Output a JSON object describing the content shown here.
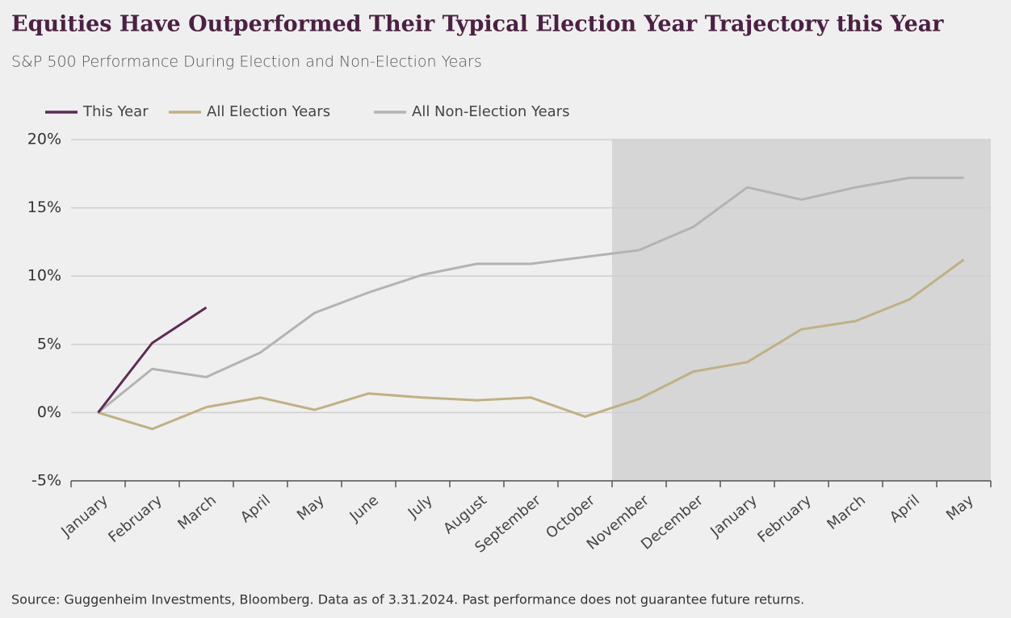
{
  "chart_data": {
    "type": "line",
    "title": "Equities Have Outperformed Their Typical Election Year Trajectory this Year",
    "subtitle": "S&P 500 Performance During Election and Non-Election Years",
    "source": "Source: Guggenheim Investments, Bloomberg. Data as of 3.31.2024. Past performance does not guarantee future returns.",
    "categories": [
      "January",
      "February",
      "March",
      "April",
      "May",
      "June",
      "July",
      "August",
      "September",
      "October",
      "November",
      "December",
      "January",
      "February",
      "March",
      "April",
      "May"
    ],
    "series": [
      {
        "name": "This Year",
        "color": "#5b2c56",
        "values": [
          0,
          5.1,
          7.7,
          null,
          null,
          null,
          null,
          null,
          null,
          null,
          null,
          null,
          null,
          null,
          null,
          null,
          null
        ]
      },
      {
        "name": "All Election Years",
        "color": "#bfb185",
        "values": [
          0,
          -1.2,
          0.4,
          1.1,
          0.2,
          1.4,
          1.1,
          0.9,
          1.1,
          -0.3,
          1.0,
          3.0,
          3.7,
          6.1,
          6.7,
          8.3,
          11.2
        ]
      },
      {
        "name": "All Non-Election Years",
        "color": "#b3b3b3",
        "values": [
          0,
          3.2,
          2.6,
          4.4,
          7.3,
          8.8,
          10.1,
          10.9,
          10.9,
          11.4,
          11.9,
          13.6,
          16.5,
          15.6,
          16.5,
          17.2,
          17.2
        ]
      }
    ],
    "ylim": [
      -5,
      20
    ],
    "yticks": [
      {
        "value": -5,
        "label": "-5%"
      },
      {
        "value": 0,
        "label": "0%"
      },
      {
        "value": 5,
        "label": "5%"
      },
      {
        "value": 10,
        "label": "10%"
      },
      {
        "value": 15,
        "label": "15%"
      },
      {
        "value": 20,
        "label": "20%"
      }
    ],
    "grid": true
  }
}
